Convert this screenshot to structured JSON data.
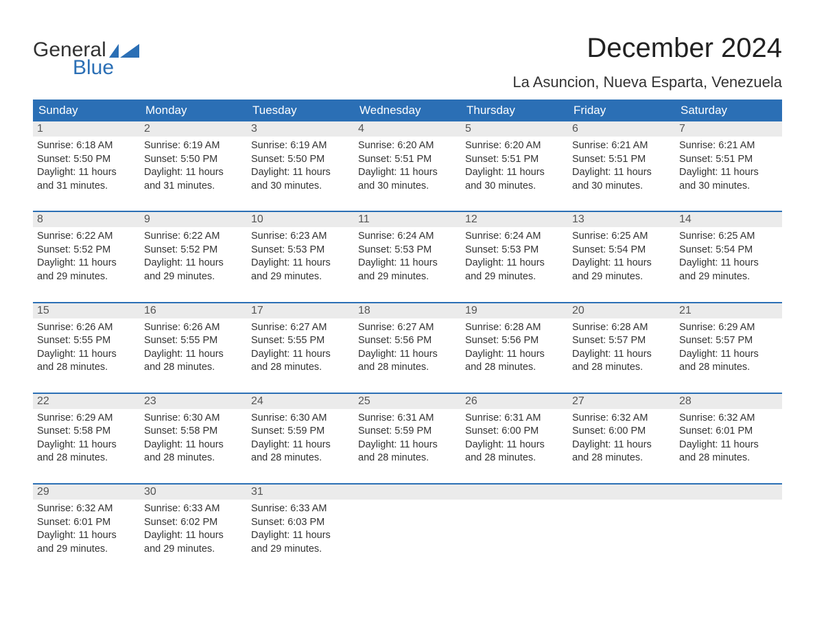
{
  "logo": {
    "text_general": "General",
    "text_blue": "Blue",
    "flag_color": "#2b6fb5"
  },
  "title": "December 2024",
  "location": "La Asuncion, Nueva Esparta, Venezuela",
  "colors": {
    "header_bg": "#2b6fb5",
    "header_text": "#ffffff",
    "daynum_bg": "#ebebeb",
    "daynum_text": "#555555",
    "body_text": "#333333",
    "week_divider": "#2b6fb5",
    "background": "#ffffff"
  },
  "fonts": {
    "title_size": 40,
    "location_size": 22,
    "weekday_size": 17,
    "daynum_size": 16,
    "info_size": 14.5
  },
  "weekdays": [
    "Sunday",
    "Monday",
    "Tuesday",
    "Wednesday",
    "Thursday",
    "Friday",
    "Saturday"
  ],
  "days": [
    {
      "n": "1",
      "sunrise": "6:18 AM",
      "sunset": "5:50 PM",
      "dl1": "Daylight: 11 hours",
      "dl2": "and 31 minutes."
    },
    {
      "n": "2",
      "sunrise": "6:19 AM",
      "sunset": "5:50 PM",
      "dl1": "Daylight: 11 hours",
      "dl2": "and 31 minutes."
    },
    {
      "n": "3",
      "sunrise": "6:19 AM",
      "sunset": "5:50 PM",
      "dl1": "Daylight: 11 hours",
      "dl2": "and 30 minutes."
    },
    {
      "n": "4",
      "sunrise": "6:20 AM",
      "sunset": "5:51 PM",
      "dl1": "Daylight: 11 hours",
      "dl2": "and 30 minutes."
    },
    {
      "n": "5",
      "sunrise": "6:20 AM",
      "sunset": "5:51 PM",
      "dl1": "Daylight: 11 hours",
      "dl2": "and 30 minutes."
    },
    {
      "n": "6",
      "sunrise": "6:21 AM",
      "sunset": "5:51 PM",
      "dl1": "Daylight: 11 hours",
      "dl2": "and 30 minutes."
    },
    {
      "n": "7",
      "sunrise": "6:21 AM",
      "sunset": "5:51 PM",
      "dl1": "Daylight: 11 hours",
      "dl2": "and 30 minutes."
    },
    {
      "n": "8",
      "sunrise": "6:22 AM",
      "sunset": "5:52 PM",
      "dl1": "Daylight: 11 hours",
      "dl2": "and 29 minutes."
    },
    {
      "n": "9",
      "sunrise": "6:22 AM",
      "sunset": "5:52 PM",
      "dl1": "Daylight: 11 hours",
      "dl2": "and 29 minutes."
    },
    {
      "n": "10",
      "sunrise": "6:23 AM",
      "sunset": "5:53 PM",
      "dl1": "Daylight: 11 hours",
      "dl2": "and 29 minutes."
    },
    {
      "n": "11",
      "sunrise": "6:24 AM",
      "sunset": "5:53 PM",
      "dl1": "Daylight: 11 hours",
      "dl2": "and 29 minutes."
    },
    {
      "n": "12",
      "sunrise": "6:24 AM",
      "sunset": "5:53 PM",
      "dl1": "Daylight: 11 hours",
      "dl2": "and 29 minutes."
    },
    {
      "n": "13",
      "sunrise": "6:25 AM",
      "sunset": "5:54 PM",
      "dl1": "Daylight: 11 hours",
      "dl2": "and 29 minutes."
    },
    {
      "n": "14",
      "sunrise": "6:25 AM",
      "sunset": "5:54 PM",
      "dl1": "Daylight: 11 hours",
      "dl2": "and 29 minutes."
    },
    {
      "n": "15",
      "sunrise": "6:26 AM",
      "sunset": "5:55 PM",
      "dl1": "Daylight: 11 hours",
      "dl2": "and 28 minutes."
    },
    {
      "n": "16",
      "sunrise": "6:26 AM",
      "sunset": "5:55 PM",
      "dl1": "Daylight: 11 hours",
      "dl2": "and 28 minutes."
    },
    {
      "n": "17",
      "sunrise": "6:27 AM",
      "sunset": "5:55 PM",
      "dl1": "Daylight: 11 hours",
      "dl2": "and 28 minutes."
    },
    {
      "n": "18",
      "sunrise": "6:27 AM",
      "sunset": "5:56 PM",
      "dl1": "Daylight: 11 hours",
      "dl2": "and 28 minutes."
    },
    {
      "n": "19",
      "sunrise": "6:28 AM",
      "sunset": "5:56 PM",
      "dl1": "Daylight: 11 hours",
      "dl2": "and 28 minutes."
    },
    {
      "n": "20",
      "sunrise": "6:28 AM",
      "sunset": "5:57 PM",
      "dl1": "Daylight: 11 hours",
      "dl2": "and 28 minutes."
    },
    {
      "n": "21",
      "sunrise": "6:29 AM",
      "sunset": "5:57 PM",
      "dl1": "Daylight: 11 hours",
      "dl2": "and 28 minutes."
    },
    {
      "n": "22",
      "sunrise": "6:29 AM",
      "sunset": "5:58 PM",
      "dl1": "Daylight: 11 hours",
      "dl2": "and 28 minutes."
    },
    {
      "n": "23",
      "sunrise": "6:30 AM",
      "sunset": "5:58 PM",
      "dl1": "Daylight: 11 hours",
      "dl2": "and 28 minutes."
    },
    {
      "n": "24",
      "sunrise": "6:30 AM",
      "sunset": "5:59 PM",
      "dl1": "Daylight: 11 hours",
      "dl2": "and 28 minutes."
    },
    {
      "n": "25",
      "sunrise": "6:31 AM",
      "sunset": "5:59 PM",
      "dl1": "Daylight: 11 hours",
      "dl2": "and 28 minutes."
    },
    {
      "n": "26",
      "sunrise": "6:31 AM",
      "sunset": "6:00 PM",
      "dl1": "Daylight: 11 hours",
      "dl2": "and 28 minutes."
    },
    {
      "n": "27",
      "sunrise": "6:32 AM",
      "sunset": "6:00 PM",
      "dl1": "Daylight: 11 hours",
      "dl2": "and 28 minutes."
    },
    {
      "n": "28",
      "sunrise": "6:32 AM",
      "sunset": "6:01 PM",
      "dl1": "Daylight: 11 hours",
      "dl2": "and 28 minutes."
    },
    {
      "n": "29",
      "sunrise": "6:32 AM",
      "sunset": "6:01 PM",
      "dl1": "Daylight: 11 hours",
      "dl2": "and 29 minutes."
    },
    {
      "n": "30",
      "sunrise": "6:33 AM",
      "sunset": "6:02 PM",
      "dl1": "Daylight: 11 hours",
      "dl2": "and 29 minutes."
    },
    {
      "n": "31",
      "sunrise": "6:33 AM",
      "sunset": "6:03 PM",
      "dl1": "Daylight: 11 hours",
      "dl2": "and 29 minutes."
    }
  ],
  "labels": {
    "sunrise_prefix": "Sunrise: ",
    "sunset_prefix": "Sunset: "
  },
  "layout": {
    "columns": 7,
    "start_weekday_index": 0,
    "total_cells": 35
  }
}
